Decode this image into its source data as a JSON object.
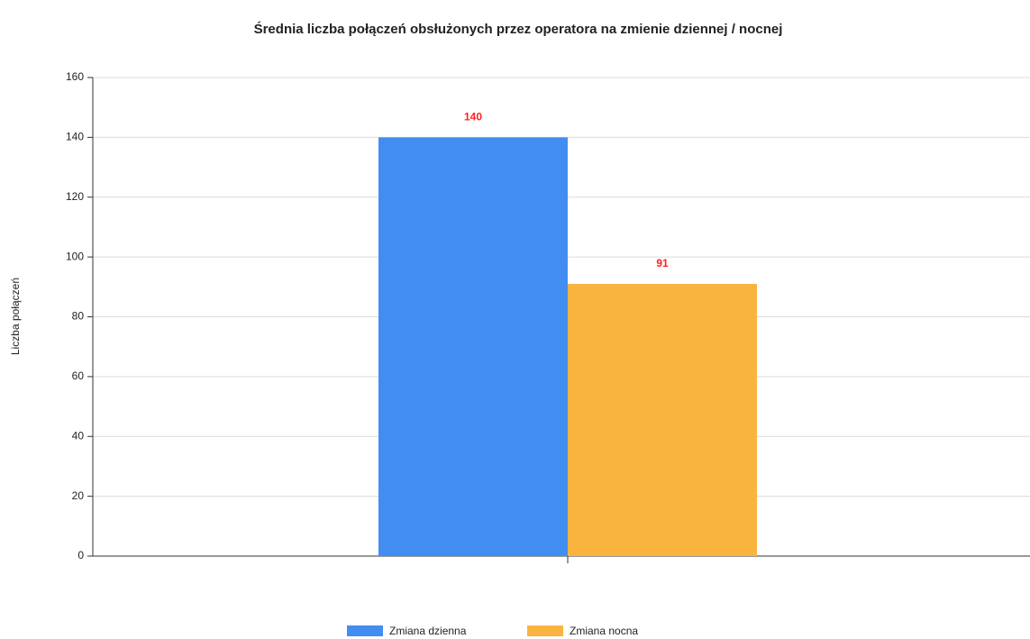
{
  "chart_data": {
    "type": "bar",
    "title": "Średnia liczba połączeń obsłużonych przez operatora na zmienie dziennej / nocnej",
    "y_label": "Liczba połączeń",
    "categories": [
      null
    ],
    "series": [
      {
        "name": "Zmiana dzienna",
        "color": "#428df2",
        "values": [
          140
        ]
      },
      {
        "name": "Zmiana nocna",
        "color": "#f9b440",
        "values": [
          91
        ]
      }
    ],
    "ylim": [
      0,
      160
    ],
    "yticks": [
      0,
      20,
      40,
      60,
      80,
      100,
      120,
      140,
      160
    ],
    "grid": true,
    "legend": "bottom",
    "value_label_color": "#ff2020"
  }
}
